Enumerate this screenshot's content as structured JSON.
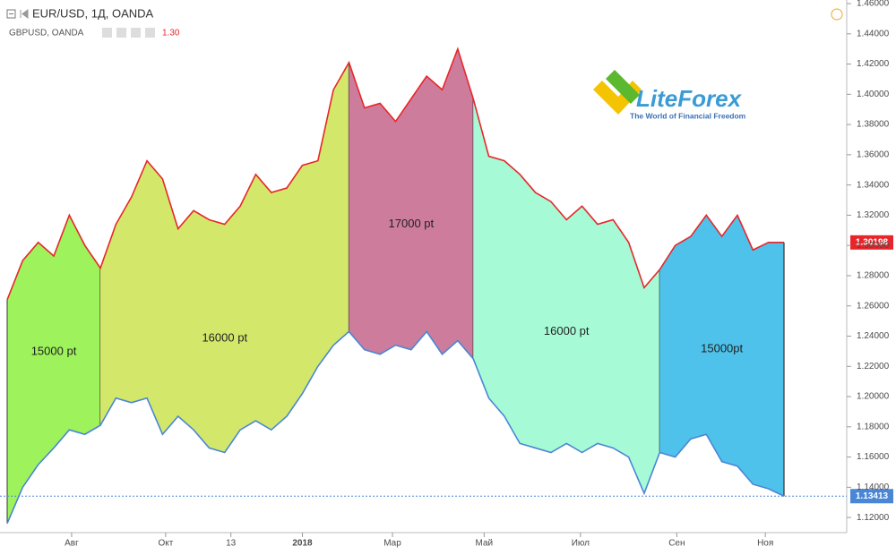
{
  "header": {
    "symbol": "EUR/USD, 1Д, OANDA",
    "compare": "GBPUSD, OANDA",
    "compare_value": "1.30"
  },
  "logo": {
    "name": "LiteForex",
    "tagline": "The World of Financial Freedom"
  },
  "chart_data": {
    "type": "line",
    "ylim": [
      1.11,
      1.46
    ],
    "yticks": [
      {
        "value": 1.12,
        "label": "1.12000"
      },
      {
        "value": 1.14,
        "label": "1.14000"
      },
      {
        "value": 1.16,
        "label": "1.16000"
      },
      {
        "value": 1.18,
        "label": "1.18000"
      },
      {
        "value": 1.2,
        "label": "1.20000"
      },
      {
        "value": 1.22,
        "label": "1.22000"
      },
      {
        "value": 1.24,
        "label": "1.24000"
      },
      {
        "value": 1.26,
        "label": "1.26000"
      },
      {
        "value": 1.28,
        "label": "1.28000"
      },
      {
        "value": 1.3,
        "label": "1.30000"
      },
      {
        "value": 1.32,
        "label": "1.32000"
      },
      {
        "value": 1.34,
        "label": "1.34000"
      },
      {
        "value": 1.36,
        "label": "1.36000"
      },
      {
        "value": 1.38,
        "label": "1.38000"
      },
      {
        "value": 1.4,
        "label": "1.40000"
      },
      {
        "value": 1.42,
        "label": "1.42000"
      },
      {
        "value": 1.44,
        "label": "1.44000"
      },
      {
        "value": 1.46,
        "label": "1.46000"
      }
    ],
    "xticks": [
      {
        "value": 4.15,
        "label": "Авг"
      },
      {
        "value": 10.2,
        "label": "Окт"
      },
      {
        "value": 14.4,
        "label": "13"
      },
      {
        "value": 19,
        "label": "2018"
      },
      {
        "value": 24.8,
        "label": "Мар"
      },
      {
        "value": 30.7,
        "label": "Май"
      },
      {
        "value": 36.9,
        "label": "Июл"
      },
      {
        "value": 43.1,
        "label": "Сен"
      },
      {
        "value": 48.8,
        "label": "Ноя"
      }
    ],
    "series": [
      {
        "name": "GBPUSD",
        "color": "#e8262a",
        "last_label": "1.30198",
        "values": [
          1.264,
          1.29,
          1.302,
          1.293,
          1.32,
          1.3,
          1.285,
          1.314,
          1.332,
          1.356,
          1.344,
          1.311,
          1.323,
          1.317,
          1.314,
          1.326,
          1.347,
          1.335,
          1.338,
          1.353,
          1.356,
          1.403,
          1.421,
          1.391,
          1.394,
          1.382,
          1.397,
          1.412,
          1.403,
          1.43,
          1.397,
          1.359,
          1.356,
          1.347,
          1.335,
          1.329,
          1.317,
          1.326,
          1.314,
          1.317,
          1.302,
          1.272,
          1.284,
          1.3,
          1.306,
          1.32,
          1.306,
          1.32,
          1.297,
          1.302,
          1.30198
        ]
      },
      {
        "name": "EUR/USD",
        "color": "#4a86d6",
        "last_label": "1.13413",
        "values": [
          1.116,
          1.14,
          1.155,
          1.166,
          1.178,
          1.175,
          1.181,
          1.199,
          1.196,
          1.199,
          1.175,
          1.187,
          1.178,
          1.166,
          1.163,
          1.178,
          1.184,
          1.178,
          1.187,
          1.202,
          1.22,
          1.234,
          1.243,
          1.231,
          1.228,
          1.234,
          1.231,
          1.243,
          1.228,
          1.237,
          1.225,
          1.199,
          1.187,
          1.169,
          1.166,
          1.163,
          1.169,
          1.163,
          1.169,
          1.166,
          1.16,
          1.136,
          1.163,
          1.16,
          1.172,
          1.175,
          1.157,
          1.154,
          1.142,
          1.139,
          1.13413
        ]
      }
    ],
    "regions": [
      {
        "label": "15000 pt",
        "color": "#9ef25c",
        "from": 0,
        "to": 6
      },
      {
        "label": "16000 pt",
        "color": "#d3e86a",
        "from": 6,
        "to": 22
      },
      {
        "label": "17000 pt",
        "color": "#cd7c9c",
        "from": 22,
        "to": 30
      },
      {
        "label": "16000 pt",
        "color": "#a6fbd6",
        "from": 30,
        "to": 42
      },
      {
        "label": "15000pt",
        "color": "#4ec2ea",
        "from": 42,
        "to": 50
      }
    ]
  }
}
